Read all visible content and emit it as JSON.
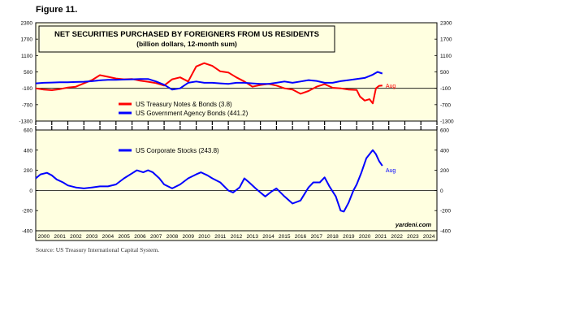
{
  "figure_label": "Figure 11.",
  "source": "Source: US Treasury International Capital System.",
  "watermark": "yardeni.com",
  "colors": {
    "background": "#ffffe0",
    "treasury": "#ff0000",
    "agency": "#0000ff",
    "stocks": "#0000ff"
  },
  "chart_data": [
    {
      "type": "line",
      "title": "NET SECURITIES PURCHASED BY FOREIGNERS FROM US RESIDENTS",
      "subtitle": "(billion dollars, 12-month sum)",
      "ylim": [
        -1300,
        2300
      ],
      "yticks": [
        -1300,
        -700,
        -100,
        500,
        1100,
        1700,
        2300
      ],
      "ytick_labels": [
        "-1300",
        "-700",
        "-100",
        "500",
        "1100",
        "1700",
        "2300"
      ],
      "reference_line": -100,
      "xlim": [
        2000,
        2025
      ],
      "legend_position": "bottom-left",
      "series": [
        {
          "name": "US Treasury Notes & Bonds (3.8)",
          "color": "#ff0000",
          "end_label": "Aug",
          "x": [
            2000.0,
            2000.5,
            2001.0,
            2001.5,
            2002.0,
            2002.5,
            2003.0,
            2003.5,
            2004.0,
            2004.5,
            2005.0,
            2005.5,
            2006.0,
            2006.5,
            2007.0,
            2007.5,
            2008.0,
            2008.5,
            2009.0,
            2009.5,
            2010.0,
            2010.5,
            2011.0,
            2011.5,
            2012.0,
            2012.5,
            2013.0,
            2013.5,
            2014.0,
            2014.5,
            2015.0,
            2015.5,
            2016.0,
            2016.5,
            2017.0,
            2017.5,
            2018.0,
            2018.5,
            2019.0,
            2019.5,
            2020.0,
            2020.2,
            2020.5,
            2020.8,
            2021.0,
            2021.2,
            2021.4,
            2021.6
          ],
          "y": [
            -100,
            -150,
            -170,
            -130,
            -70,
            -40,
            80,
            200,
            380,
            320,
            260,
            230,
            240,
            180,
            140,
            90,
            0,
            230,
            300,
            150,
            700,
            820,
            720,
            520,
            480,
            300,
            150,
            -40,
            20,
            60,
            0,
            -100,
            -150,
            -300,
            -200,
            -40,
            50,
            -80,
            -100,
            -150,
            -160,
            -400,
            -550,
            -500,
            -650,
            -100,
            -10,
            4
          ]
        },
        {
          "name": "US Government Agency Bonds (441.2)",
          "color": "#0000ff",
          "end_label": "",
          "x": [
            2000.0,
            2000.5,
            2001.0,
            2001.5,
            2002.0,
            2002.5,
            2003.0,
            2003.5,
            2004.0,
            2004.5,
            2005.0,
            2005.5,
            2006.0,
            2006.5,
            2007.0,
            2007.5,
            2008.0,
            2008.5,
            2009.0,
            2009.5,
            2010.0,
            2010.5,
            2011.0,
            2011.5,
            2012.0,
            2012.5,
            2013.0,
            2013.5,
            2014.0,
            2014.5,
            2015.0,
            2015.5,
            2016.0,
            2016.5,
            2017.0,
            2017.5,
            2018.0,
            2018.5,
            2019.0,
            2019.5,
            2020.0,
            2020.5,
            2021.0,
            2021.3,
            2021.6
          ],
          "y": [
            80,
            100,
            110,
            120,
            120,
            130,
            140,
            160,
            190,
            210,
            210,
            220,
            230,
            240,
            240,
            150,
            30,
            -150,
            -100,
            100,
            150,
            100,
            100,
            80,
            60,
            100,
            100,
            80,
            60,
            60,
            100,
            150,
            100,
            150,
            200,
            170,
            100,
            100,
            160,
            200,
            240,
            280,
            400,
            500,
            441
          ]
        }
      ]
    },
    {
      "type": "line",
      "ylim": [
        -400,
        600
      ],
      "yticks": [
        -400,
        -200,
        0,
        200,
        400,
        600
      ],
      "ytick_labels": [
        "-400",
        "-200",
        "0",
        "200",
        "400",
        "600"
      ],
      "reference_line": 0,
      "xlim": [
        2000,
        2025
      ],
      "legend_position": "top-left",
      "series": [
        {
          "name": "US Corporate Stocks (243.8)",
          "color": "#0000ff",
          "end_label": "Aug",
          "x": [
            2000.0,
            2000.3,
            2000.7,
            2001.0,
            2001.3,
            2001.7,
            2002.0,
            2002.5,
            2003.0,
            2003.5,
            2004.0,
            2004.5,
            2005.0,
            2005.5,
            2006.0,
            2006.3,
            2006.7,
            2007.0,
            2007.3,
            2007.7,
            2008.0,
            2008.5,
            2009.0,
            2009.5,
            2010.0,
            2010.3,
            2010.7,
            2011.0,
            2011.5,
            2012.0,
            2012.3,
            2012.7,
            2013.0,
            2013.3,
            2013.7,
            2014.0,
            2014.3,
            2014.7,
            2015.0,
            2015.5,
            2016.0,
            2016.5,
            2017.0,
            2017.3,
            2017.7,
            2018.0,
            2018.3,
            2018.7,
            2019.0,
            2019.2,
            2019.5,
            2019.8,
            2020.0,
            2020.3,
            2020.6,
            2020.9,
            2021.0,
            2021.2,
            2021.4,
            2021.6
          ],
          "y": [
            120,
            160,
            175,
            150,
            110,
            80,
            50,
            30,
            20,
            30,
            40,
            40,
            60,
            120,
            170,
            200,
            180,
            200,
            180,
            120,
            60,
            20,
            60,
            120,
            160,
            180,
            150,
            120,
            80,
            0,
            -20,
            30,
            120,
            80,
            20,
            -20,
            -60,
            -10,
            20,
            -60,
            -130,
            -100,
            30,
            80,
            80,
            130,
            40,
            -60,
            -200,
            -210,
            -120,
            0,
            60,
            180,
            320,
            380,
            400,
            360,
            290,
            244
          ]
        }
      ]
    }
  ],
  "xaxis_year_labels": [
    "2000",
    "2001",
    "2002",
    "2003",
    "2004",
    "2005",
    "2006",
    "2007",
    "2008",
    "2009",
    "2010",
    "2011",
    "2012",
    "2013",
    "2014",
    "2015",
    "2016",
    "2017",
    "2018",
    "2019",
    "2020",
    "2021",
    "2022",
    "2023",
    "2024"
  ]
}
